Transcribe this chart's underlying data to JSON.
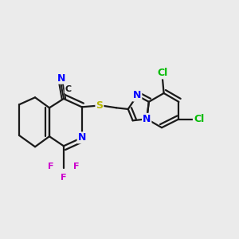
{
  "background_color": "#ebebeb",
  "bond_color": "#1a1a1a",
  "atom_colors": {
    "N": "#0000ff",
    "S": "#b8b800",
    "F": "#cc00cc",
    "Cl": "#00bb00",
    "C": "#1a1a1a"
  },
  "figsize": [
    3.0,
    3.0
  ],
  "dpi": 100
}
